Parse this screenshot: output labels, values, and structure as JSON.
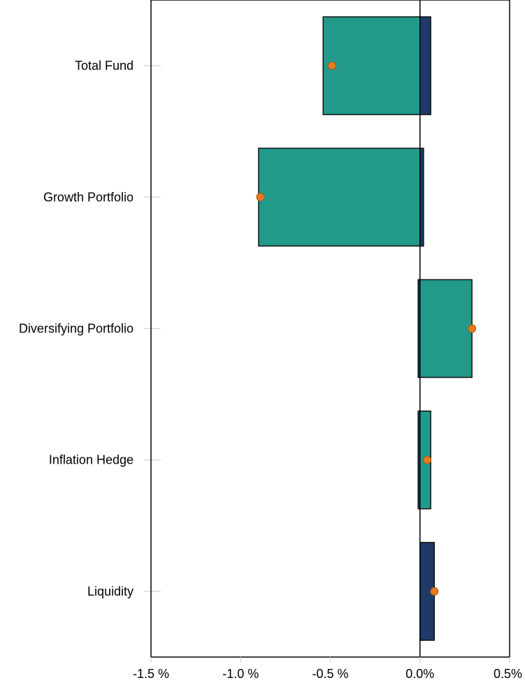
{
  "chart_data": {
    "type": "bar",
    "orientation": "horizontal",
    "categories": [
      "Total Fund",
      "Growth Portfolio",
      "Diversifying Portfolio",
      "Inflation Hedge",
      "Liquidity"
    ],
    "series": [
      {
        "kind": "bar",
        "color": "#219A8A",
        "values": [
          -0.54,
          -0.9,
          0.29,
          0.06,
          0.03
        ]
      },
      {
        "kind": "bar",
        "color": "#1F3A68",
        "values": [
          0.06,
          0.02,
          -0.01,
          -0.01,
          0.08
        ]
      },
      {
        "kind": "point",
        "color": "#E57A1E",
        "values": [
          -0.49,
          -0.89,
          0.29,
          0.04,
          0.08
        ]
      }
    ],
    "xlim": [
      -1.5,
      0.5
    ],
    "xticks": [
      "-1.5 %",
      "-1.0 %",
      "-0.5 %",
      "0.0%",
      "0.5%"
    ],
    "xtick_values": [
      -1.5,
      -1.0,
      -0.5,
      0.0,
      0.5
    ],
    "zero_line": true,
    "grid": false,
    "legend": "none"
  }
}
